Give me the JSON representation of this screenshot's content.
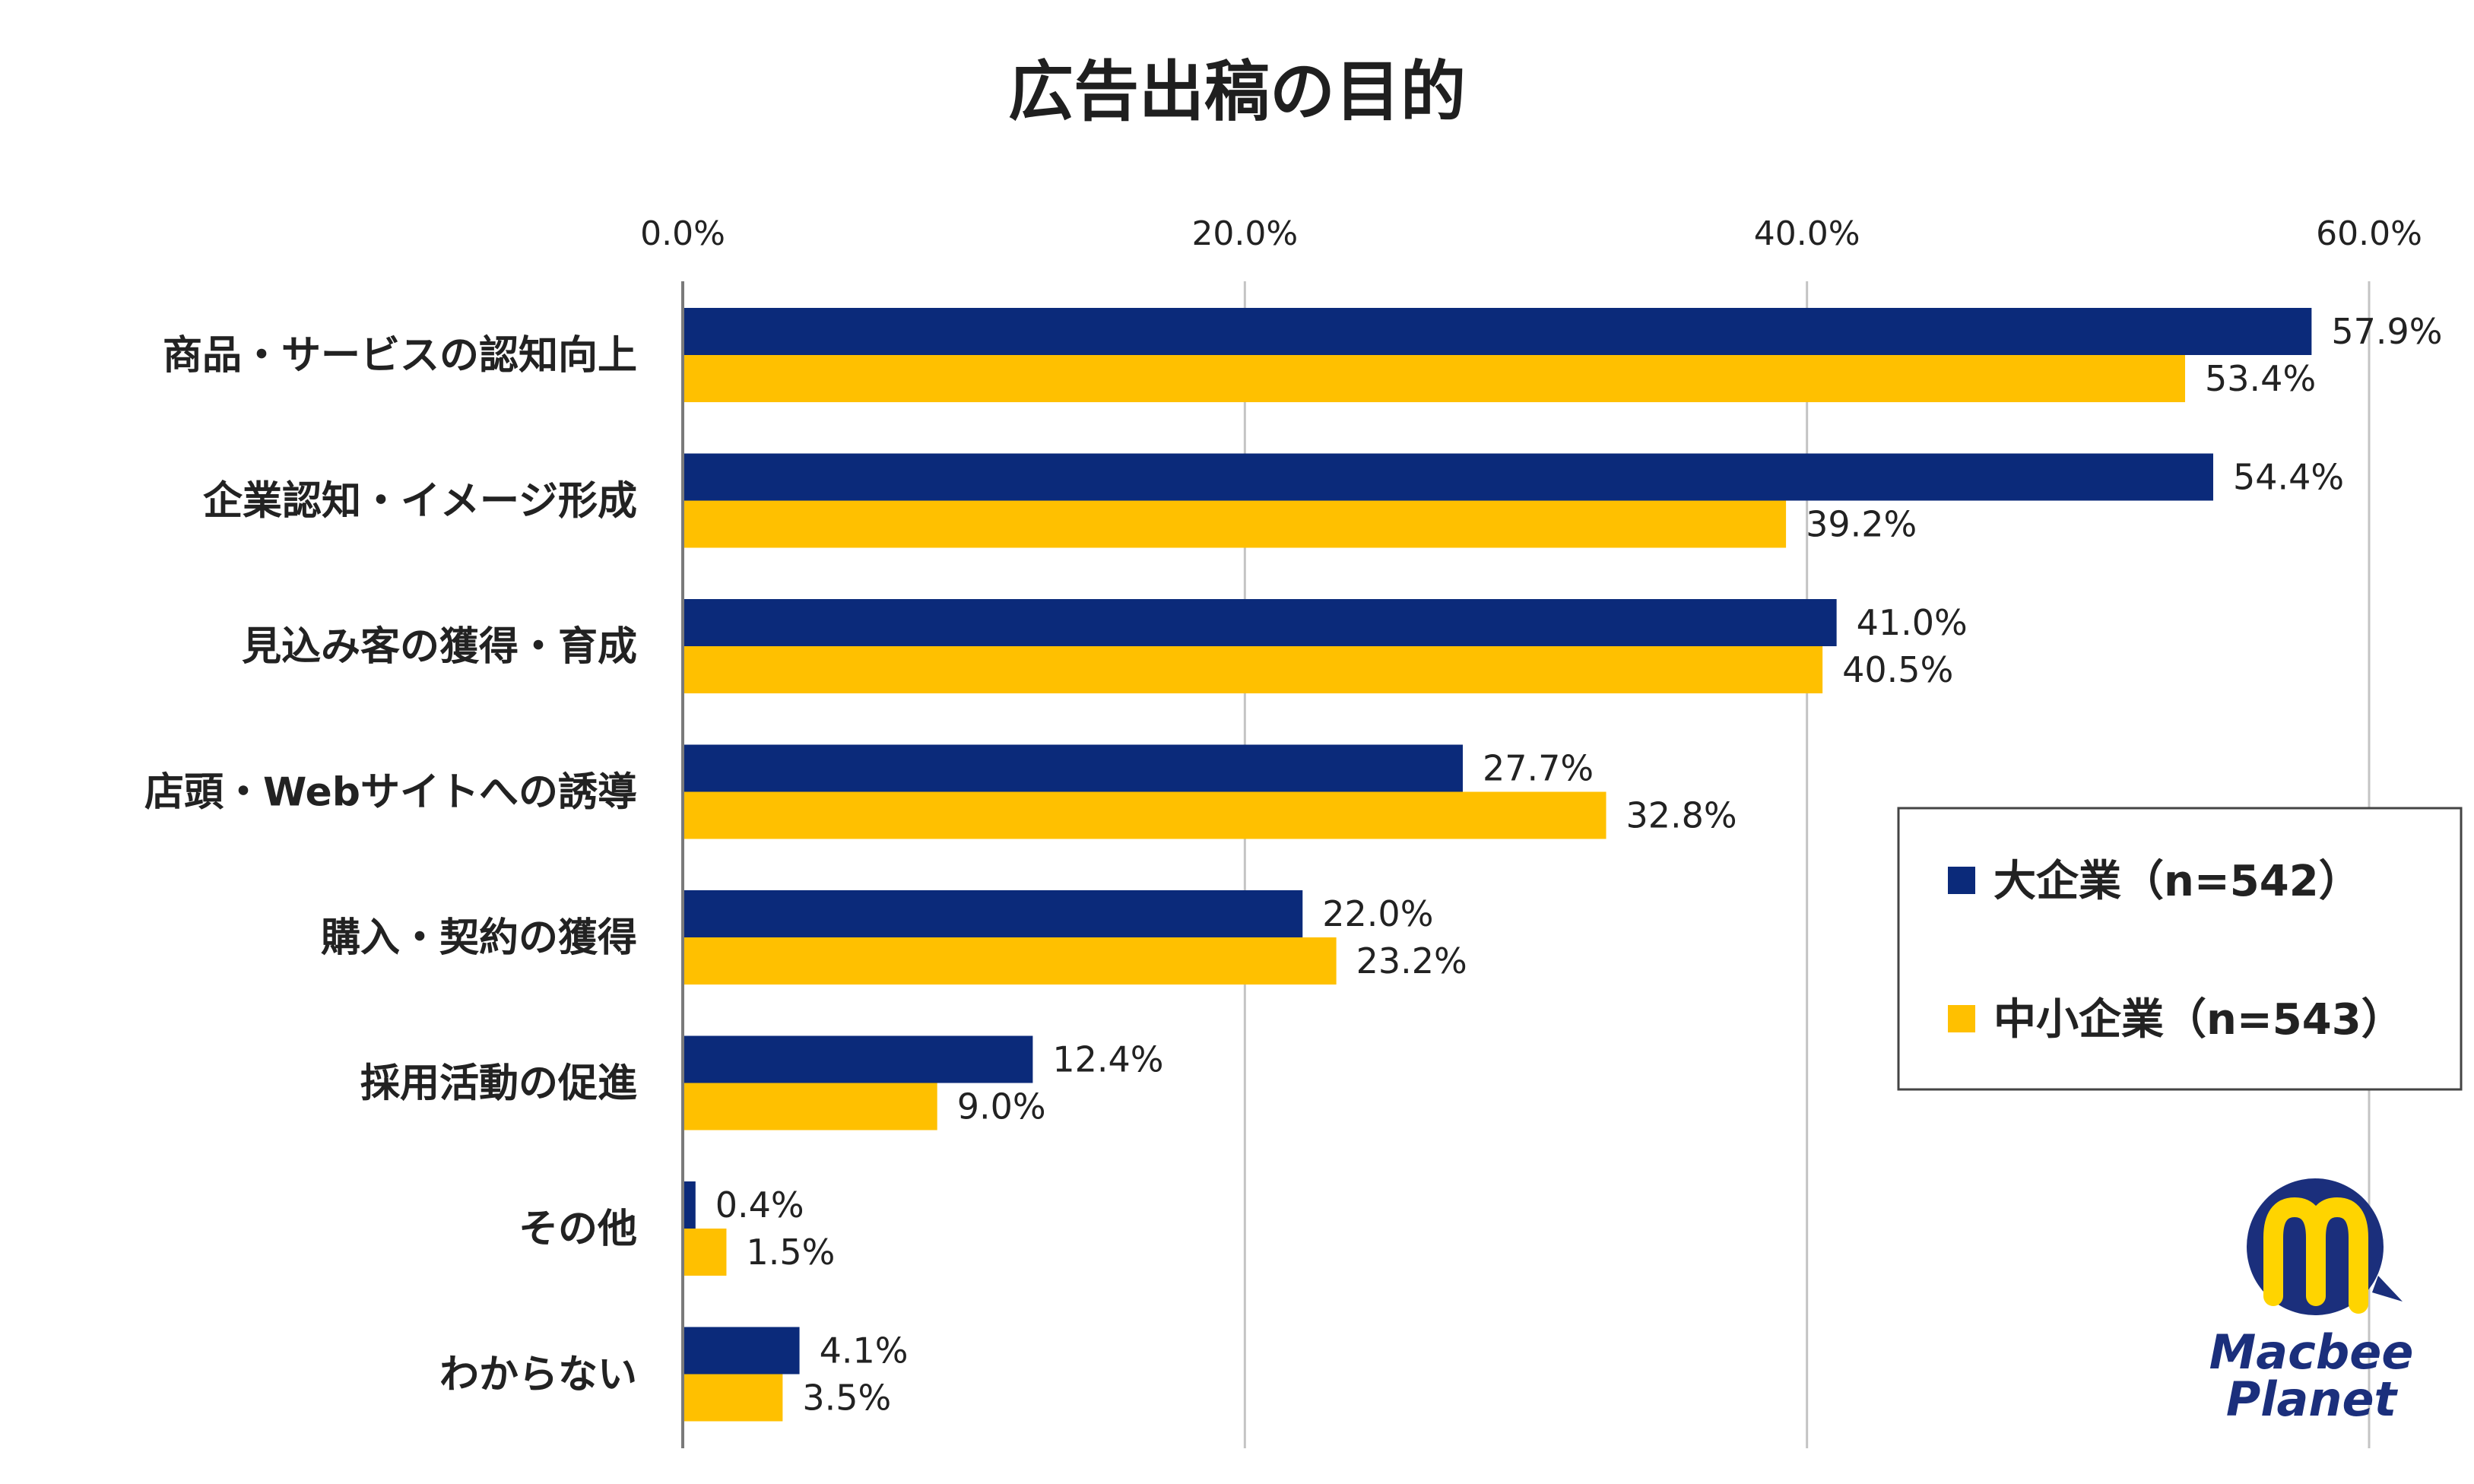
{
  "chart_data": {
    "type": "bar",
    "orientation": "horizontal",
    "title": "広告出稿の目的",
    "xlim": [
      0,
      60
    ],
    "xticks": [
      0,
      20,
      40,
      60
    ],
    "xtick_labels": [
      "0.0%",
      "20.0%",
      "40.0%",
      "60.0%"
    ],
    "grid": true,
    "legend_position": "right",
    "categories": [
      "商品・サービスの認知向上",
      "企業認知・イメージ形成",
      "見込み客の獲得・育成",
      "店頭・Webサイトへの誘導",
      "購入・契約の獲得",
      "採用活動の促進",
      "その他",
      "わからない"
    ],
    "series": [
      {
        "name": "大企業（n=542）",
        "color": "#0b2a7a",
        "values": [
          57.9,
          54.4,
          41.0,
          27.7,
          22.0,
          12.4,
          0.4,
          4.1
        ],
        "labels": [
          "57.9%",
          "54.4%",
          "41.0%",
          "27.7%",
          "22.0%",
          "12.4%",
          "0.4%",
          "4.1%"
        ]
      },
      {
        "name": "中小企業（n=543）",
        "color": "#ffc000",
        "values": [
          53.4,
          39.2,
          40.5,
          32.8,
          23.2,
          9.0,
          1.5,
          3.5
        ],
        "labels": [
          "53.4%",
          "39.2%",
          "40.5%",
          "32.8%",
          "23.2%",
          "9.0%",
          "1.5%",
          "3.5%"
        ]
      }
    ]
  },
  "logo": {
    "line1": "Macbee",
    "line2": "Planet",
    "colors": {
      "navy": "#1b2f7c",
      "yellow": "#ffd400"
    }
  }
}
